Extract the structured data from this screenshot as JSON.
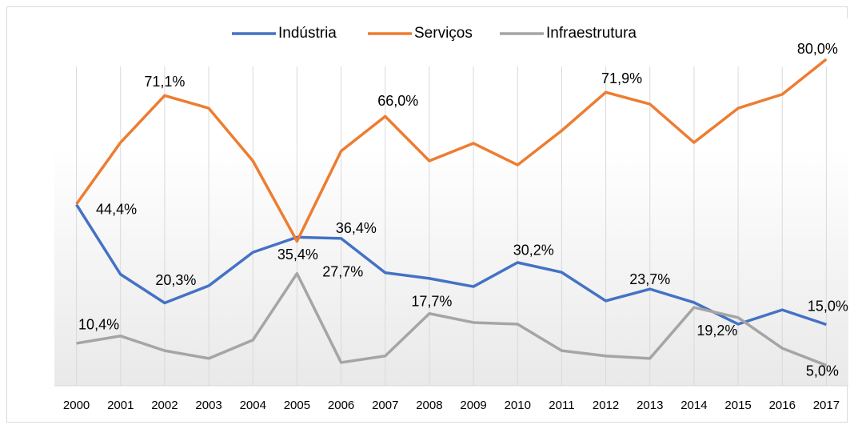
{
  "chart_data": {
    "type": "line",
    "categories": [
      "2000",
      "2001",
      "2002",
      "2003",
      "2004",
      "2005",
      "2006",
      "2007",
      "2008",
      "2009",
      "2010",
      "2011",
      "2012",
      "2013",
      "2014",
      "2015",
      "2016",
      "2017"
    ],
    "ylim": [
      0,
      90
    ],
    "grid": true,
    "legend": "top",
    "series": [
      {
        "name": "Indústria",
        "color": "#4472c4",
        "values": [
          44.4,
          27.3,
          20.3,
          24.5,
          32.7,
          36.4,
          36.1,
          27.7,
          26.3,
          24.3,
          30.2,
          27.8,
          20.8,
          23.7,
          20.4,
          15.1,
          18.6,
          15.0
        ],
        "value_labels": [
          "44,4%",
          null,
          "20,3%",
          null,
          null,
          "36,4%",
          null,
          "27,7%",
          null,
          null,
          "30,2%",
          null,
          null,
          "23,7%",
          null,
          null,
          null,
          "15,0%"
        ]
      },
      {
        "name": "Serviços",
        "color": "#ed7d31",
        "values": [
          44.5,
          59.6,
          71.1,
          68.0,
          55.1,
          35.4,
          57.5,
          66.0,
          55.1,
          59.4,
          54.1,
          62.5,
          71.9,
          69.0,
          59.6,
          68.0,
          71.4,
          80.0
        ],
        "value_labels": [
          null,
          null,
          "71,1%",
          null,
          null,
          "35,4%",
          null,
          "66,0%",
          null,
          null,
          null,
          null,
          "71,9%",
          null,
          null,
          null,
          null,
          "80,0%"
        ]
      },
      {
        "name": "Infraestrutura",
        "color": "#a5a5a5",
        "values": [
          10.4,
          12.2,
          8.6,
          6.7,
          11.2,
          27.5,
          5.7,
          7.3,
          17.7,
          15.5,
          15.1,
          8.6,
          7.3,
          6.7,
          19.2,
          16.7,
          9.2,
          5.0
        ],
        "value_labels": [
          "10,4%",
          null,
          null,
          null,
          null,
          null,
          null,
          null,
          "17,7%",
          null,
          null,
          null,
          null,
          null,
          "19,2%",
          null,
          null,
          "5,0%"
        ]
      }
    ]
  }
}
